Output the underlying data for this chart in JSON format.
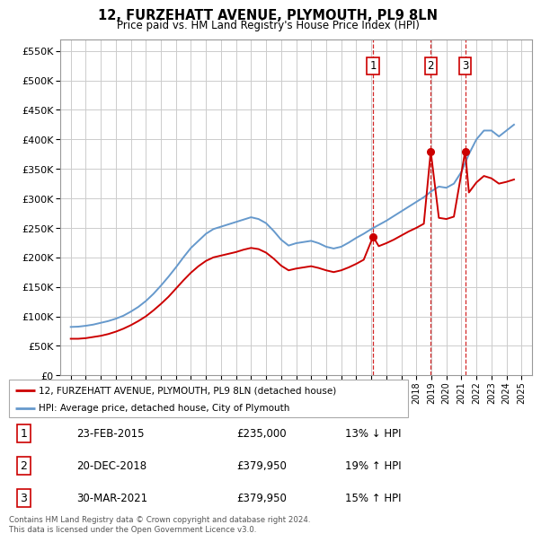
{
  "title": "12, FURZEHATT AVENUE, PLYMOUTH, PL9 8LN",
  "subtitle": "Price paid vs. HM Land Registry's House Price Index (HPI)",
  "hpi_label": "HPI: Average price, detached house, City of Plymouth",
  "property_label": "12, FURZEHATT AVENUE, PLYMOUTH, PL9 8LN (detached house)",
  "legend_text": "Contains HM Land Registry data © Crown copyright and database right 2024.\nThis data is licensed under the Open Government Licence v3.0.",
  "sales": [
    {
      "num": 1,
      "date": "23-FEB-2015",
      "price": 235000,
      "hpi_pct": "13% ↓ HPI",
      "year": 2015.12
    },
    {
      "num": 2,
      "date": "20-DEC-2018",
      "price": 379950,
      "hpi_pct": "19% ↑ HPI",
      "year": 2018.96
    },
    {
      "num": 3,
      "date": "30-MAR-2021",
      "price": 379950,
      "hpi_pct": "15% ↑ HPI",
      "year": 2021.25
    }
  ],
  "hpi_color": "#6699cc",
  "property_color": "#cc0000",
  "vline_color": "#cc0000",
  "grid_color": "#cccccc",
  "background_color": "#ffffff",
  "ylim": [
    0,
    570000
  ],
  "yticks": [
    0,
    50000,
    100000,
    150000,
    200000,
    250000,
    300000,
    350000,
    400000,
    450000,
    500000,
    550000
  ],
  "hpi_years": [
    1995,
    1995.5,
    1996,
    1996.5,
    1997,
    1997.5,
    1998,
    1998.5,
    1999,
    1999.5,
    2000,
    2000.5,
    2001,
    2001.5,
    2002,
    2002.5,
    2003,
    2003.5,
    2004,
    2004.5,
    2005,
    2005.5,
    2006,
    2006.5,
    2007,
    2007.5,
    2008,
    2008.5,
    2009,
    2009.5,
    2010,
    2010.5,
    2011,
    2011.5,
    2012,
    2012.5,
    2013,
    2013.5,
    2014,
    2014.5,
    2015,
    2015.5,
    2016,
    2016.5,
    2017,
    2017.5,
    2018,
    2018.5,
    2019,
    2019.5,
    2020,
    2020.5,
    2021,
    2021.5,
    2022,
    2022.5,
    2023,
    2023.5,
    2024,
    2024.5
  ],
  "hpi_values": [
    82000,
    82500,
    84000,
    86000,
    89000,
    92000,
    96000,
    101000,
    108000,
    116000,
    126000,
    138000,
    152000,
    167000,
    183000,
    200000,
    216000,
    228000,
    240000,
    248000,
    252000,
    256000,
    260000,
    264000,
    268000,
    265000,
    258000,
    245000,
    230000,
    220000,
    224000,
    226000,
    228000,
    224000,
    218000,
    215000,
    218000,
    225000,
    233000,
    240000,
    248000,
    255000,
    262000,
    270000,
    278000,
    286000,
    294000,
    302000,
    312000,
    320000,
    318000,
    325000,
    345000,
    375000,
    400000,
    415000,
    415000,
    405000,
    415000,
    425000
  ],
  "property_years": [
    1995,
    1995.5,
    1996,
    1996.5,
    1997,
    1997.5,
    1998,
    1998.5,
    1999,
    1999.5,
    2000,
    2000.5,
    2001,
    2001.5,
    2002,
    2002.5,
    2003,
    2003.5,
    2004,
    2004.5,
    2005,
    2005.5,
    2006,
    2006.5,
    2007,
    2007.5,
    2008,
    2008.5,
    2009,
    2009.5,
    2010,
    2010.5,
    2011,
    2011.5,
    2012,
    2012.5,
    2013,
    2013.5,
    2014,
    2014.5,
    2015.12,
    2015.5,
    2016,
    2016.5,
    2017,
    2017.5,
    2018,
    2018.5,
    2018.96,
    2019.5,
    2020,
    2020.5,
    2021.25,
    2021.5,
    2022,
    2022.5,
    2023,
    2023.5,
    2024,
    2024.5
  ],
  "property_values": [
    62000,
    62000,
    63000,
    65000,
    67000,
    70000,
    74000,
    79000,
    85000,
    92000,
    100000,
    110000,
    121000,
    133000,
    147000,
    161000,
    174000,
    185000,
    194000,
    200000,
    203000,
    206000,
    209000,
    213000,
    216000,
    214000,
    208000,
    198000,
    186000,
    178000,
    181000,
    183000,
    185000,
    182000,
    178000,
    175000,
    178000,
    183000,
    189000,
    196000,
    235000,
    219000,
    224000,
    230000,
    237000,
    244000,
    250000,
    257000,
    379950,
    267000,
    265000,
    269000,
    379950,
    310000,
    327000,
    338000,
    334000,
    325000,
    328000,
    332000
  ]
}
